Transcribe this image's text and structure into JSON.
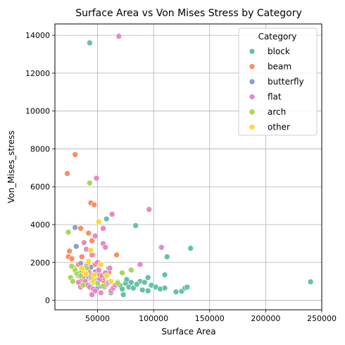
{
  "chart_data": {
    "type": "scatter",
    "title": "Surface Area vs Von Mises Stress by Category",
    "xlabel": "Surface Area",
    "ylabel": "Von_Mises_stress",
    "xlim": [
      12000,
      250000
    ],
    "ylim": [
      -500,
      14600
    ],
    "xticks": [
      50000,
      100000,
      150000,
      200000,
      250000
    ],
    "xtick_labels": [
      "50000",
      "100000",
      "150000",
      "200000",
      "250000"
    ],
    "yticks": [
      0,
      2000,
      4000,
      6000,
      8000,
      10000,
      12000,
      14000
    ],
    "ytick_labels": [
      "0",
      "2000",
      "4000",
      "6000",
      "8000",
      "10000",
      "12000",
      "14000"
    ],
    "grid": true,
    "legend": {
      "title": "Category",
      "placement": "top-right"
    },
    "series": [
      {
        "name": "block",
        "color": "#66c2a5",
        "points": [
          [
            43000,
            13600
          ],
          [
            58000,
            4300
          ],
          [
            84000,
            3950
          ],
          [
            112000,
            2300
          ],
          [
            133000,
            2750
          ],
          [
            240000,
            980
          ],
          [
            110000,
            1350
          ],
          [
            95000,
            1200
          ],
          [
            88000,
            1000
          ],
          [
            75000,
            900
          ],
          [
            70000,
            800
          ],
          [
            65000,
            750
          ],
          [
            78000,
            700
          ],
          [
            72000,
            600
          ],
          [
            82000,
            650
          ],
          [
            90000,
            550
          ],
          [
            98000,
            800
          ],
          [
            102000,
            700
          ],
          [
            106000,
            600
          ],
          [
            110000,
            650
          ],
          [
            120000,
            450
          ],
          [
            125000,
            480
          ],
          [
            128000,
            650
          ],
          [
            130000,
            700
          ],
          [
            95000,
            500
          ],
          [
            73000,
            300
          ],
          [
            62000,
            400
          ],
          [
            80000,
            950
          ],
          [
            85000,
            850
          ],
          [
            68000,
            950
          ],
          [
            55000,
            1200
          ],
          [
            60000,
            1700
          ],
          [
            50000,
            1100
          ],
          [
            45000,
            900
          ],
          [
            92000,
            950
          ],
          [
            76000,
            1100
          ]
        ]
      },
      {
        "name": "beam",
        "color": "#fc8d62",
        "points": [
          [
            23000,
            6700
          ],
          [
            30000,
            7700
          ],
          [
            44000,
            5150
          ],
          [
            47000,
            5050
          ],
          [
            35000,
            3800
          ],
          [
            42000,
            3550
          ],
          [
            25000,
            2600
          ],
          [
            24000,
            2300
          ],
          [
            27000,
            2200
          ],
          [
            36000,
            2300
          ],
          [
            46000,
            2400
          ],
          [
            67000,
            2400
          ],
          [
            33000,
            1900
          ],
          [
            40000,
            1600
          ],
          [
            52000,
            1350
          ],
          [
            38000,
            1200
          ],
          [
            55000,
            1050
          ],
          [
            31000,
            1450
          ],
          [
            48000,
            1900
          ],
          [
            29000,
            1700
          ],
          [
            45000,
            3150
          ],
          [
            60000,
            1500
          ],
          [
            35000,
            1000
          ]
        ]
      },
      {
        "name": "butterfly",
        "color": "#8da0cb",
        "points": [
          [
            30000,
            3850
          ],
          [
            31000,
            2850
          ],
          [
            35000,
            1950
          ],
          [
            38000,
            1400
          ],
          [
            40000,
            1100
          ],
          [
            42000,
            1250
          ],
          [
            44000,
            1750
          ],
          [
            46000,
            950
          ],
          [
            48000,
            1500
          ],
          [
            50000,
            1050
          ],
          [
            52000,
            750
          ],
          [
            55000,
            1200
          ],
          [
            45000,
            1350
          ],
          [
            38000,
            850
          ],
          [
            36000,
            1550
          ],
          [
            41000,
            1900
          ],
          [
            33000,
            1300
          ],
          [
            49000,
            600
          ]
        ]
      },
      {
        "name": "flat",
        "color": "#e78ac3",
        "points": [
          [
            69000,
            13950
          ],
          [
            49000,
            6450
          ],
          [
            96000,
            4800
          ],
          [
            63000,
            4550
          ],
          [
            55000,
            3800
          ],
          [
            48000,
            3400
          ],
          [
            55000,
            3000
          ],
          [
            57000,
            2800
          ],
          [
            38000,
            3050
          ],
          [
            40000,
            2700
          ],
          [
            45000,
            2400
          ],
          [
            107000,
            2800
          ],
          [
            88000,
            1900
          ],
          [
            61000,
            1700
          ],
          [
            51000,
            1600
          ],
          [
            42000,
            1500
          ],
          [
            37000,
            1250
          ],
          [
            39000,
            1000
          ],
          [
            41000,
            800
          ],
          [
            43000,
            700
          ],
          [
            46000,
            600
          ],
          [
            48000,
            500
          ],
          [
            50000,
            900
          ],
          [
            52000,
            1100
          ],
          [
            54000,
            1300
          ],
          [
            56000,
            700
          ],
          [
            58000,
            850
          ],
          [
            60000,
            950
          ],
          [
            62000,
            500
          ],
          [
            64000,
            650
          ],
          [
            66000,
            800
          ],
          [
            44000,
            1150
          ],
          [
            47000,
            1050
          ],
          [
            35000,
            700
          ],
          [
            33000,
            950
          ],
          [
            53000,
            400
          ],
          [
            45000,
            300
          ],
          [
            57000,
            1450
          ],
          [
            50000,
            2000
          ],
          [
            40000,
            1800
          ]
        ]
      },
      {
        "name": "arch",
        "color": "#a6d854",
        "points": [
          [
            43000,
            6200
          ],
          [
            24000,
            3600
          ],
          [
            26000,
            1200
          ],
          [
            28000,
            1000
          ],
          [
            30000,
            1600
          ],
          [
            32000,
            1400
          ],
          [
            40000,
            1700
          ],
          [
            35000,
            1300
          ],
          [
            45000,
            1100
          ],
          [
            50000,
            900
          ],
          [
            68000,
            900
          ],
          [
            80000,
            1600
          ],
          [
            72000,
            1450
          ],
          [
            37000,
            800
          ],
          [
            55000,
            750
          ],
          [
            27000,
            1800
          ]
        ]
      },
      {
        "name": "other",
        "color": "#ffd92f",
        "points": [
          [
            51000,
            4150
          ],
          [
            44000,
            2650
          ],
          [
            42000,
            2050
          ],
          [
            38000,
            1500
          ],
          [
            36000,
            1700
          ],
          [
            47000,
            1350
          ],
          [
            58000,
            1300
          ],
          [
            62000,
            1000
          ],
          [
            40000,
            1400
          ],
          [
            53000,
            1900
          ],
          [
            46000,
            1000
          ]
        ]
      }
    ]
  }
}
